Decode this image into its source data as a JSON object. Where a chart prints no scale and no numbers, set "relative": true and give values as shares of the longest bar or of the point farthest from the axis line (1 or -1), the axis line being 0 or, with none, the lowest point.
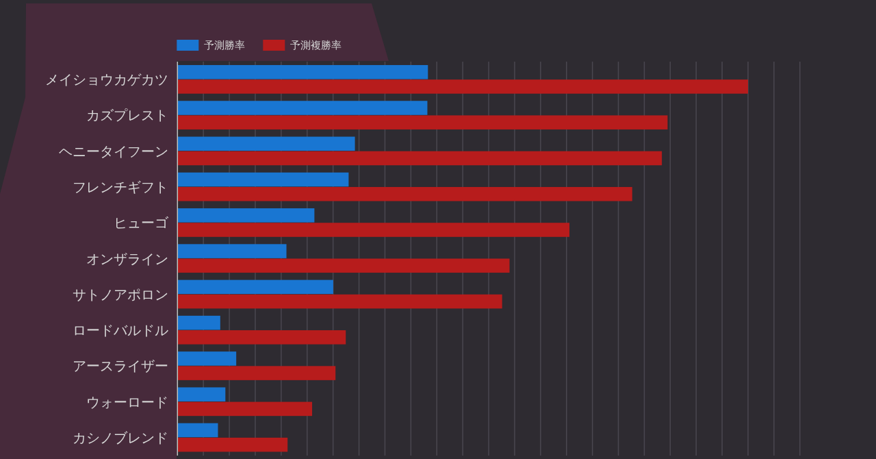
{
  "chart_data": {
    "type": "bar",
    "orientation": "horizontal",
    "relative": true,
    "categories": [
      "メイショウカゲカツ",
      "カズプレスト",
      "ヘニータイフーン",
      "フレンチギフト",
      "ヒューゴ",
      "オンザライン",
      "サトノアポロン",
      "ロードバルドル",
      "アースライザー",
      "ウォーロード",
      "カシノブレンド"
    ],
    "series": [
      {
        "name": "予測勝率",
        "color": "#1976d2",
        "values": [
          0.439,
          0.438,
          0.311,
          0.3,
          0.24,
          0.191,
          0.273,
          0.075,
          0.103,
          0.084,
          0.071
        ]
      },
      {
        "name": "予測複勝率",
        "color": "#b71c1c",
        "values": [
          1,
          0.859,
          0.849,
          0.797,
          0.687,
          0.582,
          0.569,
          0.295,
          0.277,
          0.236,
          0.193
        ]
      }
    ],
    "grid": "x",
    "legend": "top left"
  }
}
